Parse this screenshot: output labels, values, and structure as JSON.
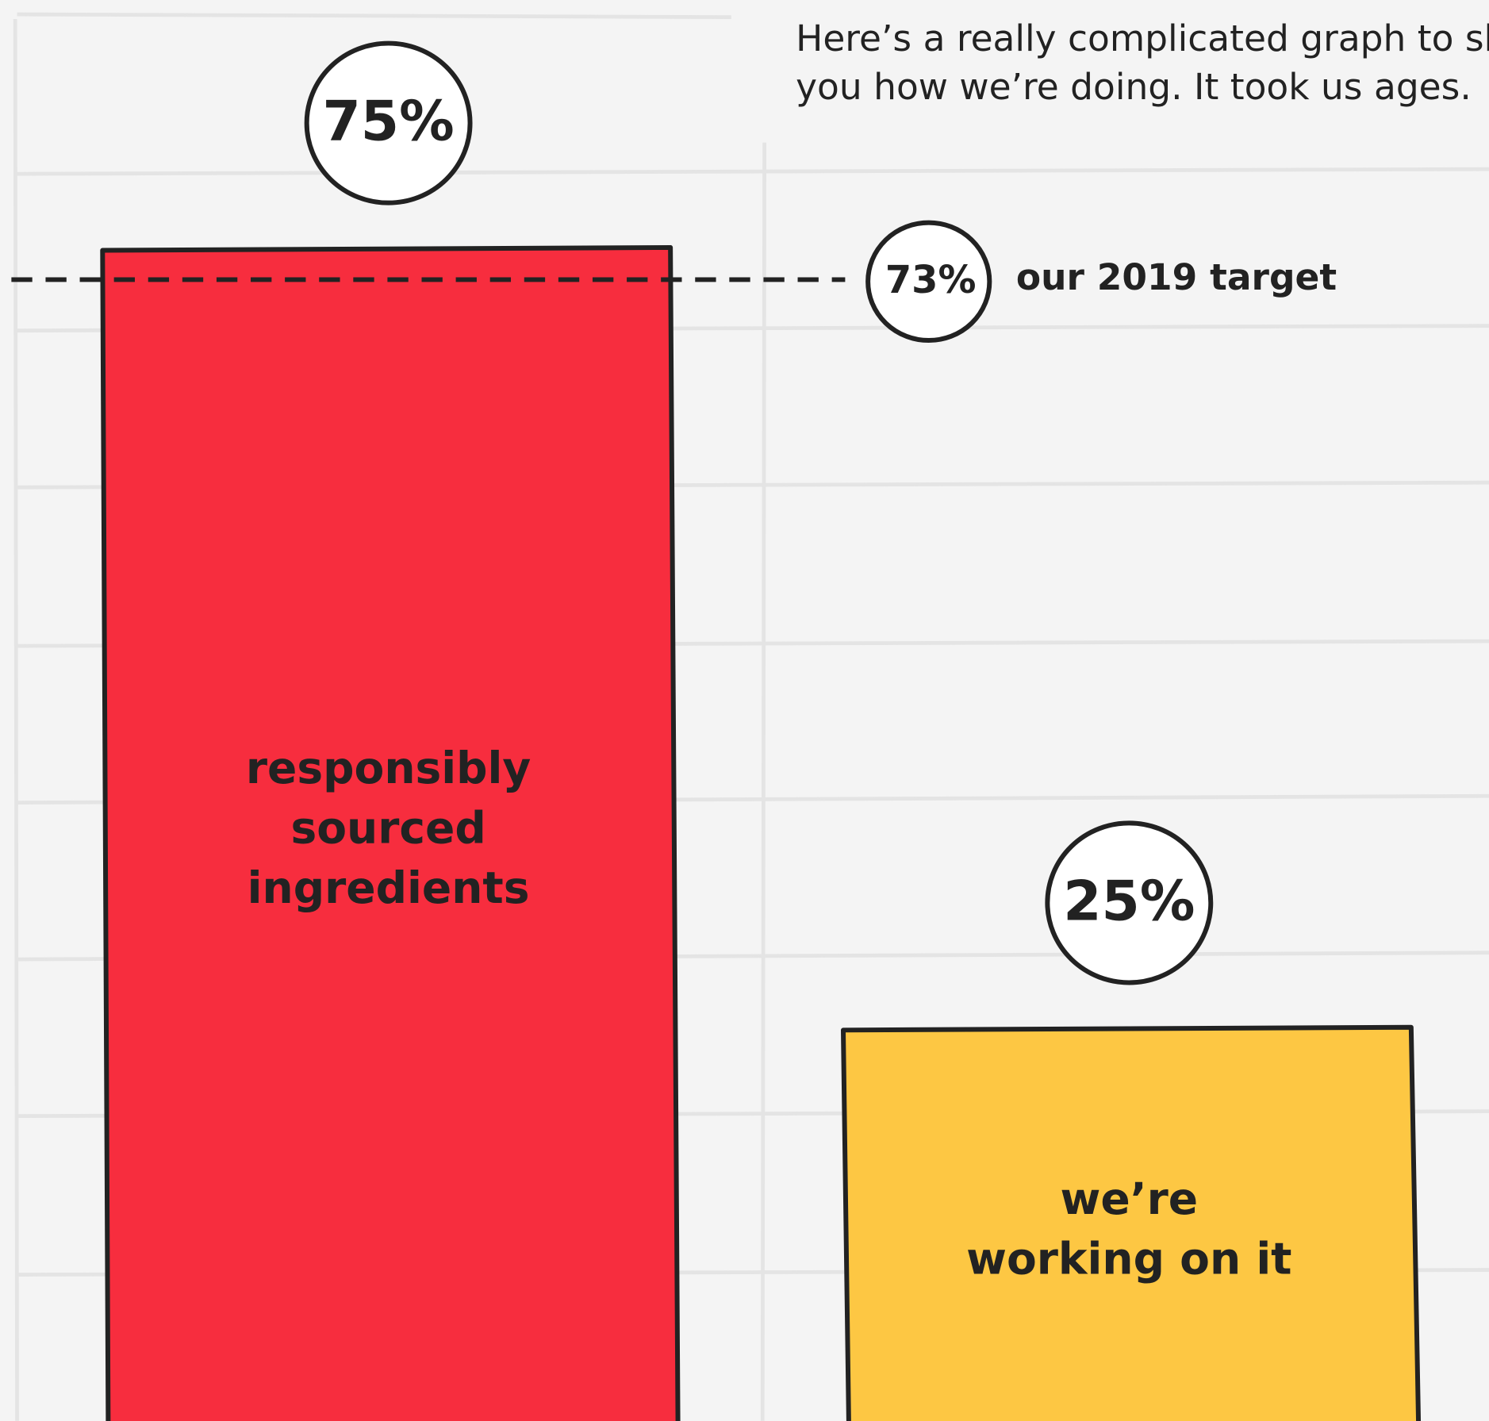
{
  "chart_data": {
    "type": "bar",
    "subtitle": [
      "Here’s a really complicated graph to show",
      "you how we’re doing. It took us ages."
    ],
    "categories": [
      [
        "responsibly",
        "sourced",
        "ingredients"
      ],
      [
        "we’re",
        "working on it"
      ]
    ],
    "values": [
      75,
      25
    ],
    "value_labels": [
      "75%",
      "25%"
    ],
    "colors": [
      "#f72d3e",
      "#fdc743"
    ],
    "target": {
      "value": 73,
      "label": "73%",
      "annotation": "our 2019 target"
    }
  }
}
